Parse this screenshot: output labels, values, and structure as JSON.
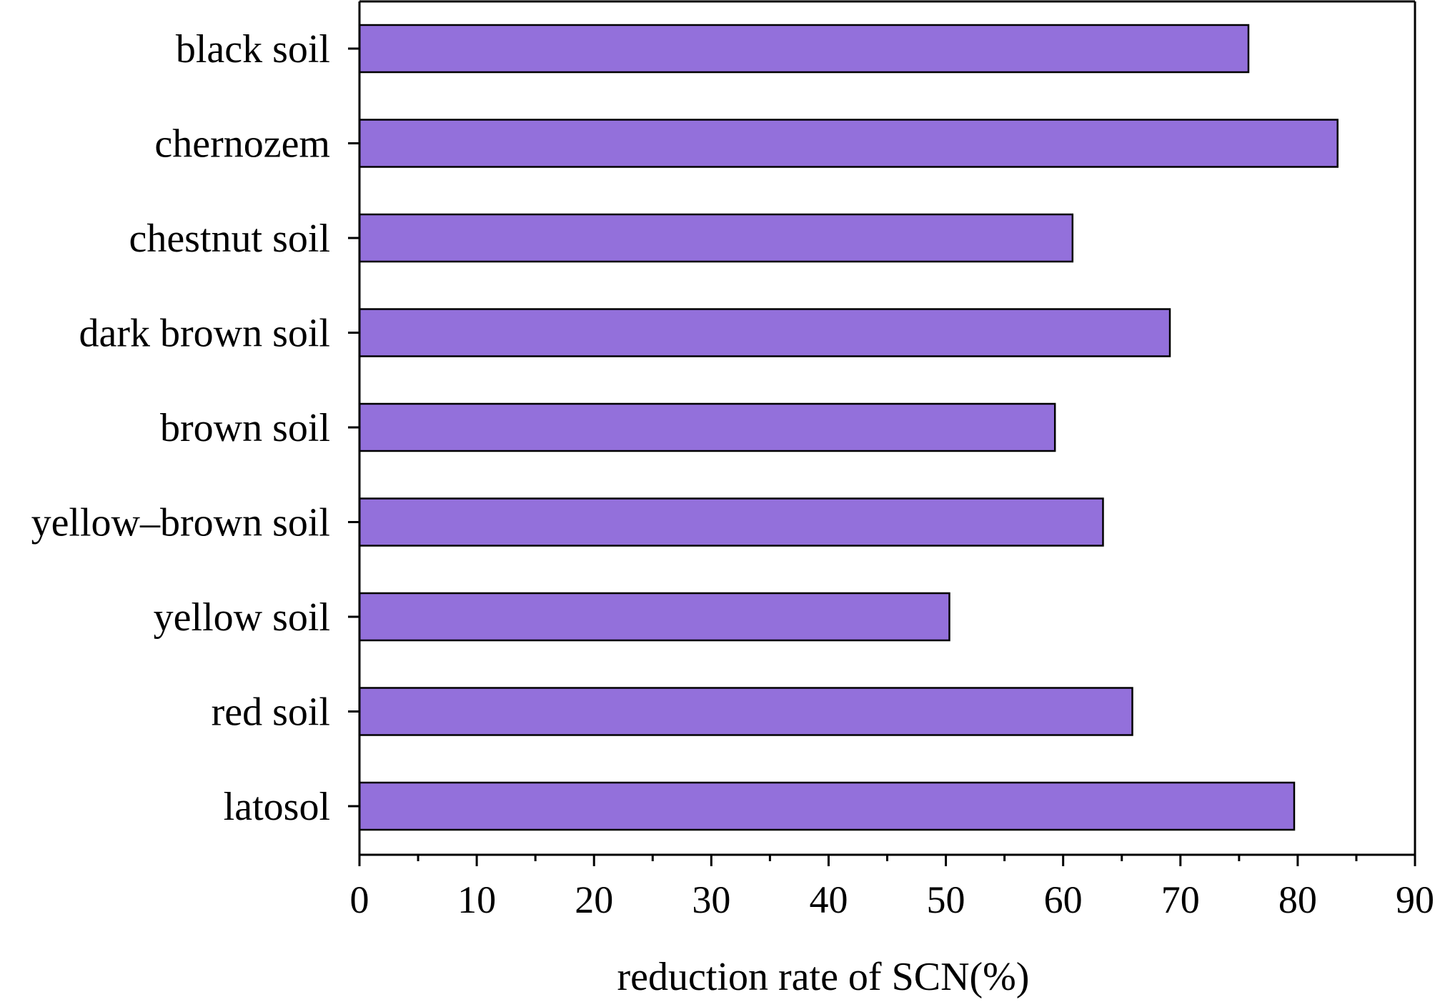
{
  "chart_data": {
    "type": "bar",
    "orientation": "horizontal",
    "title": "",
    "xlabel": "reduction rate of SCN(%)",
    "ylabel": "",
    "categories": [
      "black soil",
      "chernozem",
      "chestnut soil",
      "dark brown soil",
      "brown soil",
      "yellow–brown soil",
      "yellow soil",
      "red soil",
      "latosol"
    ],
    "values": [
      75.8,
      83.4,
      60.8,
      69.1,
      59.3,
      63.4,
      50.3,
      65.9,
      79.7
    ],
    "xlim": [
      0,
      90
    ],
    "xticks": [
      "0",
      "10",
      "20",
      "30",
      "40",
      "50",
      "60",
      "70",
      "80",
      "90"
    ],
    "grid": false,
    "legend": "none",
    "colors": {
      "bar_fill": "#9370db",
      "bar_stroke": "#000000",
      "axis": "#000000",
      "background": "#ffffff"
    }
  }
}
